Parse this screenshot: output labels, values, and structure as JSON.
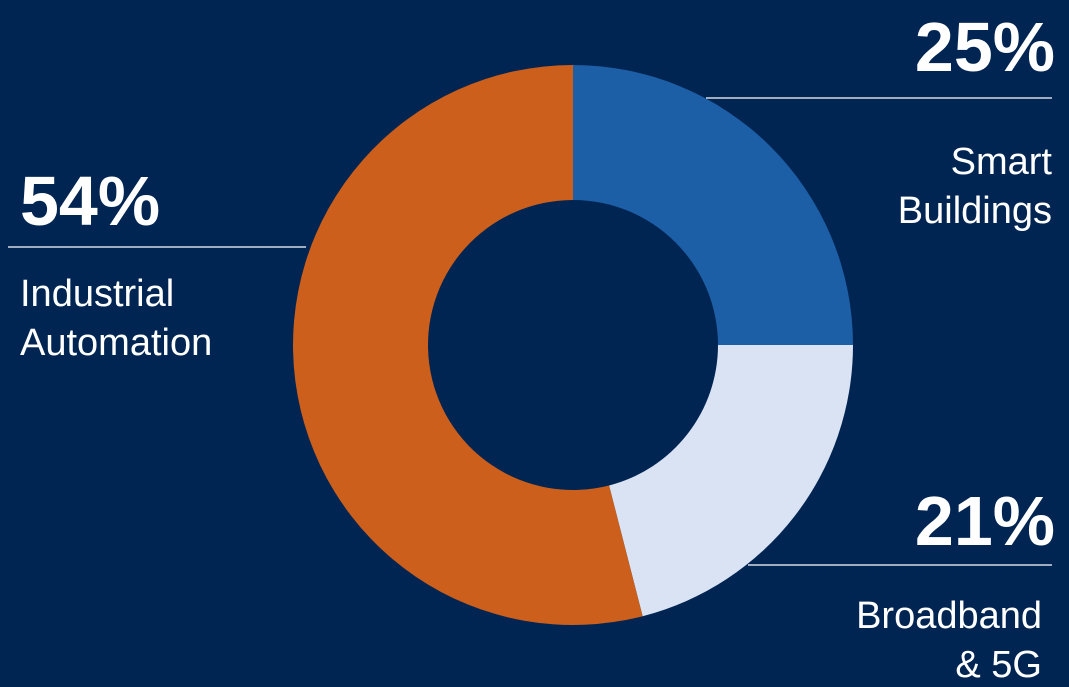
{
  "chart_data": {
    "type": "pie",
    "donut": true,
    "title": "",
    "slices": [
      {
        "value": 25,
        "percent_label": "25%",
        "label_line1": "Smart",
        "label_line2": "Buildings",
        "color": "#1D5FA6"
      },
      {
        "value": 21,
        "percent_label": "21%",
        "label_line1": "Broadband",
        "label_line2": "& 5G",
        "color": "#DAE3F3"
      },
      {
        "value": 54,
        "percent_label": "54%",
        "label_line1": "Industrial",
        "label_line2": "Automation",
        "color": "#CC5F1B"
      }
    ]
  },
  "colors": {
    "background": "#012552",
    "leader_line": "#FFFFFF",
    "text": "#FFFFFF"
  }
}
